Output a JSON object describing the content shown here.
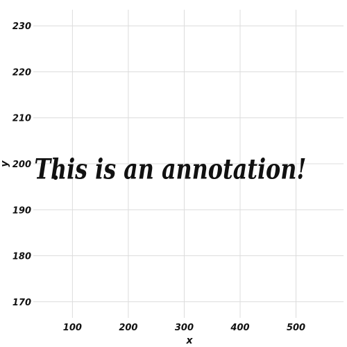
{
  "chart_data": {
    "type": "scatter",
    "title": "",
    "xlabel": "x",
    "ylabel": "y",
    "xlim": [
      30,
      585
    ],
    "ylim": [
      166.5,
      233.5
    ],
    "x_ticks": [
      100,
      200,
      300,
      400,
      500
    ],
    "y_ticks": [
      170,
      180,
      190,
      200,
      210,
      220,
      230
    ],
    "grid": true,
    "points": [
      {
        "x": 30,
        "y": 197
      }
    ],
    "annotations": [
      {
        "text": "This is an annotation!",
        "x": 275,
        "y": 199
      }
    ],
    "colors": {
      "grid": "#dcdcdc",
      "point": "#111111",
      "text": "#111111"
    }
  }
}
